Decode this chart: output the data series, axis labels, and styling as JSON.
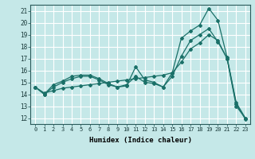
{
  "xlabel": "Humidex (Indice chaleur)",
  "bg_color": "#c5e8e8",
  "grid_color": "#ffffff",
  "line_color": "#1a7068",
  "xlim": [
    -0.5,
    23.5
  ],
  "ylim": [
    11.5,
    21.5
  ],
  "xticks": [
    0,
    1,
    2,
    3,
    4,
    5,
    6,
    7,
    8,
    9,
    10,
    11,
    12,
    13,
    14,
    15,
    16,
    17,
    18,
    19,
    20,
    21,
    22,
    23
  ],
  "yticks": [
    12,
    13,
    14,
    15,
    16,
    17,
    18,
    19,
    20,
    21
  ],
  "curve1_x": [
    0,
    1,
    2,
    3,
    4,
    5,
    6,
    7,
    8,
    9,
    10,
    11,
    12,
    13,
    14,
    15,
    16,
    17,
    18,
    19,
    20,
    21,
    22,
    23
  ],
  "curve1_y": [
    14.6,
    14.0,
    14.8,
    15.1,
    15.5,
    15.6,
    15.6,
    15.3,
    14.9,
    14.6,
    14.7,
    16.3,
    15.2,
    15.0,
    14.6,
    15.8,
    18.7,
    19.3,
    19.8,
    21.2,
    20.2,
    17.1,
    13.3,
    12.0
  ],
  "curve2_x": [
    0,
    1,
    2,
    3,
    4,
    5,
    6,
    7,
    8,
    9,
    10,
    11,
    12,
    13,
    14,
    15,
    16,
    17,
    18,
    19,
    20,
    21,
    22,
    23
  ],
  "curve2_y": [
    14.6,
    14.1,
    14.3,
    14.5,
    14.6,
    14.7,
    14.8,
    14.9,
    15.0,
    15.1,
    15.2,
    15.3,
    15.4,
    15.5,
    15.6,
    15.8,
    16.7,
    17.8,
    18.3,
    19.0,
    18.5,
    17.0,
    13.0,
    12.0
  ],
  "curve3_x": [
    0,
    1,
    2,
    3,
    4,
    5,
    6,
    7,
    8,
    9,
    10,
    11,
    12,
    13,
    14,
    15,
    16,
    17,
    18,
    19,
    20,
    21,
    22,
    23
  ],
  "curve3_y": [
    14.6,
    14.0,
    14.6,
    15.0,
    15.3,
    15.5,
    15.5,
    15.2,
    14.8,
    14.6,
    14.8,
    15.5,
    15.0,
    14.9,
    14.6,
    15.5,
    17.2,
    18.5,
    19.0,
    19.5,
    18.4,
    17.0,
    13.2,
    11.9
  ]
}
